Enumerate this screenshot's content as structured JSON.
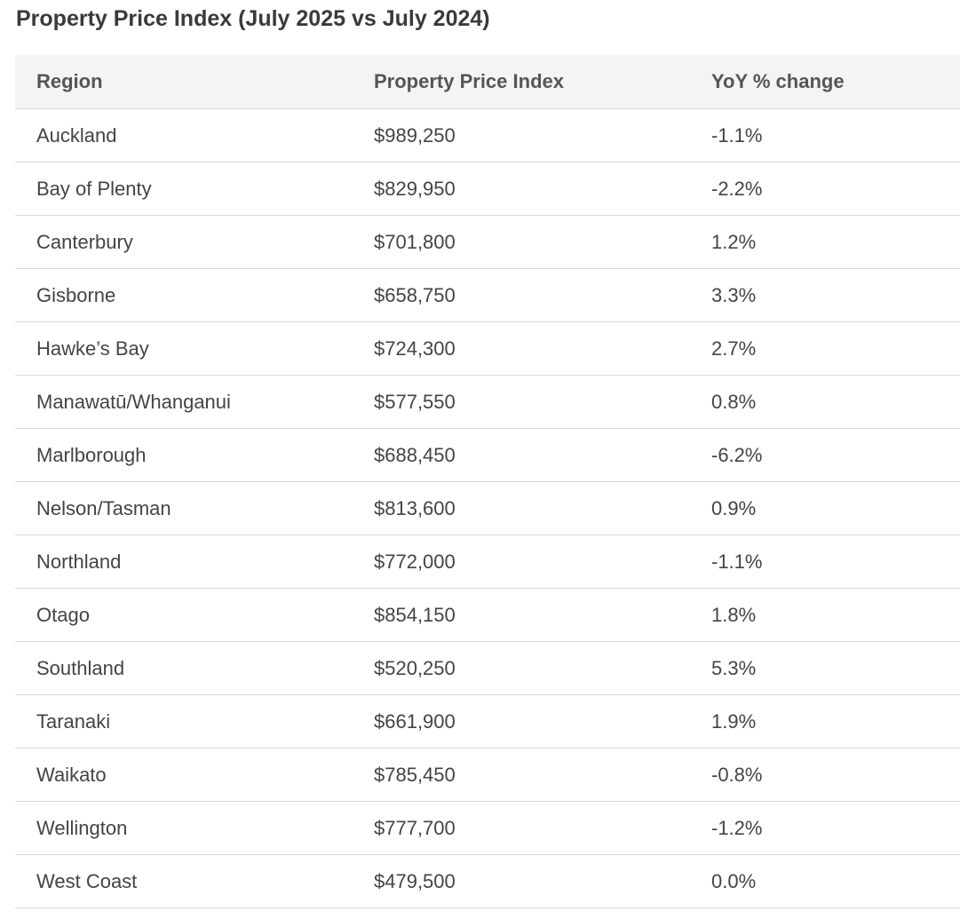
{
  "title": "Property Price Index (July 2025 vs July 2024)",
  "table": {
    "headers": {
      "region": "Region",
      "price": "Property Price Index",
      "yoy": "YoY % change"
    },
    "rows": [
      {
        "region": "Auckland",
        "price": "$989,250",
        "yoy": "-1.1%"
      },
      {
        "region": "Bay of Plenty",
        "price": "$829,950",
        "yoy": "-2.2%"
      },
      {
        "region": "Canterbury",
        "price": "$701,800",
        "yoy": "1.2%"
      },
      {
        "region": "Gisborne",
        "price": "$658,750",
        "yoy": "3.3%"
      },
      {
        "region": "Hawke’s Bay",
        "price": "$724,300",
        "yoy": "2.7%"
      },
      {
        "region": "Manawatū/Whanganui",
        "price": "$577,550",
        "yoy": "0.8%"
      },
      {
        "region": "Marlborough",
        "price": "$688,450",
        "yoy": "-6.2%"
      },
      {
        "region": "Nelson/Tasman",
        "price": "$813,600",
        "yoy": "0.9%"
      },
      {
        "region": "Northland",
        "price": "$772,000",
        "yoy": "-1.1%"
      },
      {
        "region": "Otago",
        "price": "$854,150",
        "yoy": "1.8%"
      },
      {
        "region": "Southland",
        "price": "$520,250",
        "yoy": "5.3%"
      },
      {
        "region": "Taranaki",
        "price": "$661,900",
        "yoy": "1.9%"
      },
      {
        "region": "Waikato",
        "price": "$785,450",
        "yoy": "-0.8%"
      },
      {
        "region": "Wellington",
        "price": "$777,700",
        "yoy": "-1.2%"
      },
      {
        "region": "West Coast",
        "price": "$479,500",
        "yoy": "0.0%"
      }
    ]
  }
}
